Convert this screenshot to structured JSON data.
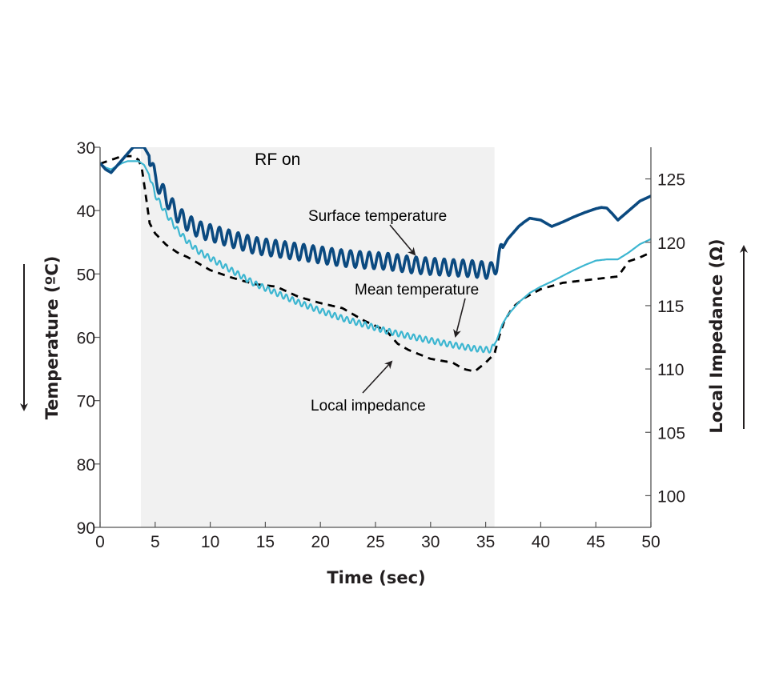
{
  "chart_data": {
    "type": "line",
    "title": "",
    "xlabel": "Time (sec)",
    "ylabel_left": "Temperature (ºC)",
    "ylabel_right": "Local Impedance (Ω)",
    "xlim": [
      0,
      50
    ],
    "ylim_left": [
      30,
      90
    ],
    "ylim_left_inverted": true,
    "ylim_right": [
      97.5,
      127.5
    ],
    "x_ticks": [
      "0",
      "5",
      "10",
      "15",
      "20",
      "25",
      "30",
      "35",
      "40",
      "45",
      "50"
    ],
    "y_left_ticks": [
      "30",
      "40",
      "50",
      "60",
      "70",
      "80",
      "90"
    ],
    "y_right_ticks": [
      "100",
      "105",
      "110",
      "115",
      "120",
      "125"
    ],
    "grid": false,
    "shaded_region": {
      "label": "RF on",
      "x_start": 3.7,
      "x_end": 35.8,
      "color": "#f1f1f1"
    },
    "left_arrow_direction": "down",
    "right_arrow_direction": "up",
    "series": [
      {
        "name": "Surface temperature",
        "axis": "left",
        "color": "#0b4a80",
        "style": "solid-thick",
        "oscillation_amplitude": 1.3,
        "oscillation_period": 0.85,
        "osc_range": [
          4.5,
          36.5
        ],
        "x": [
          0,
          0.5,
          1,
          1.5,
          2,
          2.5,
          3,
          3.5,
          4,
          4.5,
          5,
          6,
          7,
          8,
          9,
          10,
          12,
          14,
          16,
          18,
          20,
          22,
          24,
          26,
          28,
          30,
          32,
          34,
          35.5,
          36,
          36.5,
          37,
          37.5,
          38,
          38.5,
          39,
          40,
          41,
          42,
          43,
          44,
          45,
          45.5,
          46,
          46.5,
          47,
          48,
          49,
          50
        ],
        "values": [
          32.5,
          33.5,
          34,
          33,
          32,
          31,
          30,
          30,
          30,
          31.5,
          35,
          38,
          40.5,
          42,
          43,
          43.5,
          44.5,
          45.5,
          46,
          46.5,
          47,
          47.5,
          47.8,
          48,
          48.5,
          48.8,
          49,
          49.2,
          49.5,
          48.5,
          46,
          44.5,
          43.5,
          42.5,
          41.8,
          41.2,
          41.5,
          42.5,
          41.8,
          41.0,
          40.3,
          39.7,
          39.5,
          39.6,
          40.5,
          41.5,
          40.0,
          38.5,
          37.7
        ]
      },
      {
        "name": "Mean temperature",
        "axis": "left",
        "color": "#3db6d1",
        "style": "solid-thin",
        "oscillation_amplitude": 0.45,
        "oscillation_period": 0.55,
        "osc_range": [
          4.5,
          35.8
        ],
        "x": [
          0,
          0.5,
          1,
          1.5,
          2,
          2.5,
          3,
          3.5,
          4,
          4.5,
          5,
          6,
          7,
          8,
          9,
          10,
          12,
          14,
          16,
          18,
          20,
          22,
          24,
          26,
          28,
          30,
          32,
          34,
          35.5,
          36,
          36.5,
          37,
          38,
          39,
          40,
          41,
          42,
          43,
          44,
          45,
          46,
          47,
          48,
          49,
          50
        ],
        "values": [
          32.5,
          33.2,
          33.5,
          33,
          32.5,
          32.2,
          32.2,
          32.2,
          32.8,
          34.5,
          37.5,
          40.5,
          43,
          45,
          46.5,
          47.5,
          49.5,
          51.5,
          53,
          54.5,
          55.8,
          57,
          58,
          59,
          59.8,
          60.5,
          61.2,
          61.8,
          62,
          60.5,
          58,
          56.5,
          54.5,
          53,
          52,
          51.2,
          50.3,
          49.4,
          48.6,
          47.9,
          47.7,
          47.7,
          46.6,
          45.3,
          44.5
        ]
      },
      {
        "name": "Local impedance",
        "axis": "right",
        "color": "#000000",
        "style": "dashed",
        "x": [
          0,
          1,
          2,
          3,
          3.5,
          3.8,
          4.1,
          4.5,
          5,
          6,
          7,
          8,
          9,
          10,
          12,
          14,
          16,
          18,
          20,
          22,
          24,
          26,
          27,
          28,
          30,
          32,
          33,
          34,
          35,
          35.8,
          36.2,
          36.7,
          37.5,
          38.5,
          40,
          42,
          44,
          46,
          47,
          48,
          49,
          50
        ],
        "values": [
          126.2,
          126.5,
          126.8,
          126.8,
          126.5,
          125.8,
          124.0,
          121.5,
          120.7,
          119.8,
          119.2,
          118.8,
          118.3,
          117.8,
          117.2,
          116.7,
          116.5,
          115.7,
          115.2,
          114.8,
          113.8,
          113.0,
          112.0,
          111.5,
          110.8,
          110.5,
          110.0,
          109.8,
          110.5,
          111.2,
          112.5,
          113.8,
          114.9,
          115.6,
          116.3,
          116.8,
          117.0,
          117.2,
          117.3,
          118.5,
          118.8,
          119.2
        ]
      }
    ],
    "annotations": [
      {
        "text": "Surface temperature",
        "points_to_series": "Surface temperature",
        "at_x": 29.5
      },
      {
        "text": "Mean temperature",
        "points_to_series": "Mean temperature",
        "at_x": 32.2
      },
      {
        "text": "Local impedance",
        "points_to_series": "Local impedance",
        "at_x": 26.5
      }
    ]
  }
}
